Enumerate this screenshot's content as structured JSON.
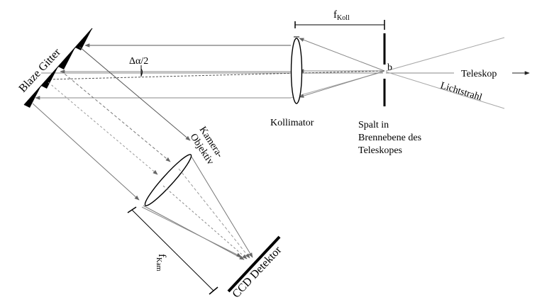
{
  "labels": {
    "grating": "Blaze Gitter",
    "angle": "Δα/2",
    "f_coll_main": "f",
    "f_coll_sub": "Koll",
    "slit_width": "b",
    "telescope": "Teleskop",
    "light_beam": "Lichtstrahl",
    "collimator": "Kollimator",
    "slit_line1": "Spalt in",
    "slit_line2": "Brennebene des",
    "slit_line3": "Teleskopes",
    "camera_line1": "Kamera-",
    "camera_line2": "Objektiv",
    "f_cam_main": "f",
    "f_cam_sub": "Kam",
    "detector": "CCD Detektor"
  },
  "colors": {
    "ink": "#000000",
    "ray": "#7a7a7a",
    "ray_light": "#a8a8a8"
  }
}
